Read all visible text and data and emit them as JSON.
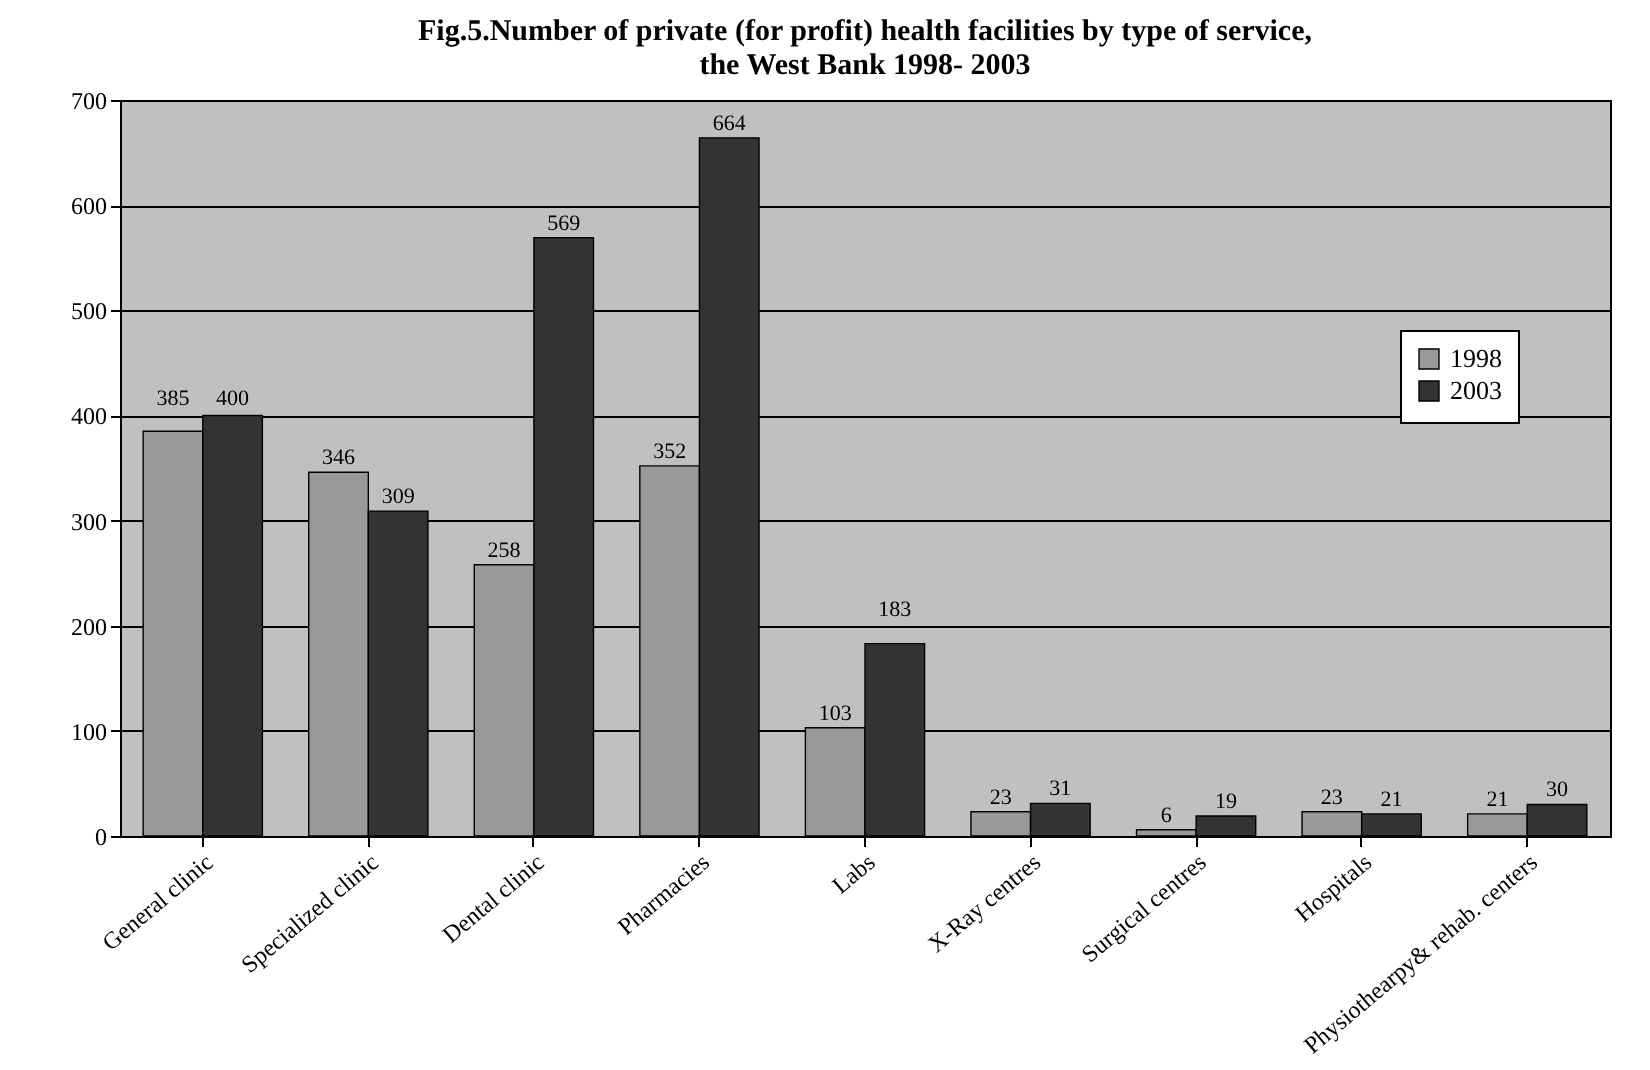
{
  "chart_data": {
    "type": "bar",
    "title": "Fig.5.Number of private (for profit) health facilities by type of service,\nthe West Bank 1998- 2003",
    "categories": [
      "General clinic",
      "Specialized clinic",
      "Dental clinic",
      "Pharmacies",
      "Labs",
      "X-Ray centres",
      "Surgical centres",
      "Hospitals",
      "Physiothearpy& rehab. centers"
    ],
    "series": [
      {
        "name": "1998",
        "color": "#999999",
        "values": [
          385,
          346,
          258,
          352,
          103,
          23,
          6,
          23,
          21
        ]
      },
      {
        "name": "2003",
        "color": "#333333",
        "values": [
          400,
          309,
          569,
          664,
          183,
          31,
          19,
          21,
          30
        ]
      }
    ],
    "ylim": [
      0,
      700
    ],
    "yticks": [
      0,
      100,
      200,
      300,
      400,
      500,
      600,
      700
    ],
    "grid": "y",
    "legend": "right",
    "data_labels": true
  }
}
